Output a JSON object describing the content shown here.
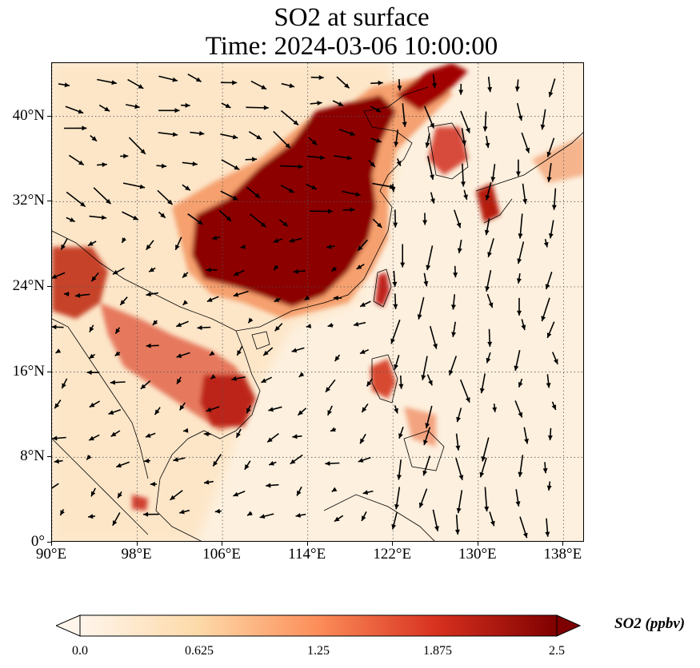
{
  "figure": {
    "title_line1": "SO2 at surface",
    "title_line2": "Time: 2024-03-06 10:00:00"
  },
  "map": {
    "lon_range": [
      90,
      140
    ],
    "lat_range": [
      0,
      45
    ],
    "gridlines": "dotted",
    "lon_ticks": [
      {
        "value": 90,
        "label": "90°E"
      },
      {
        "value": 98,
        "label": "98°E"
      },
      {
        "value": 106,
        "label": "106°E"
      },
      {
        "value": 114,
        "label": "114°E"
      },
      {
        "value": 122,
        "label": "122°E"
      },
      {
        "value": 130,
        "label": "130°E"
      },
      {
        "value": 138,
        "label": "138°E"
      }
    ],
    "lat_ticks": [
      {
        "value": 0,
        "label": "0°"
      },
      {
        "value": 8,
        "label": "8°N"
      },
      {
        "value": 16,
        "label": "16°N"
      },
      {
        "value": 24,
        "label": "24°N"
      },
      {
        "value": 32,
        "label": "32°N"
      },
      {
        "value": 40,
        "label": "40°N"
      }
    ],
    "field": "SO2",
    "colormap": [
      "#fff5eb",
      "#fdd9a8",
      "#fc8d59",
      "#d7301f",
      "#7f0000"
    ],
    "coastline_color": "#000000",
    "wind_vectors": "black arrows"
  },
  "colorbar": {
    "title": "SO2 (ppbv)",
    "min": 0.0,
    "max": 2.5,
    "ticks": [
      "0.0",
      "0.625",
      "1.25",
      "1.875",
      "2.5"
    ],
    "extend": "both"
  }
}
